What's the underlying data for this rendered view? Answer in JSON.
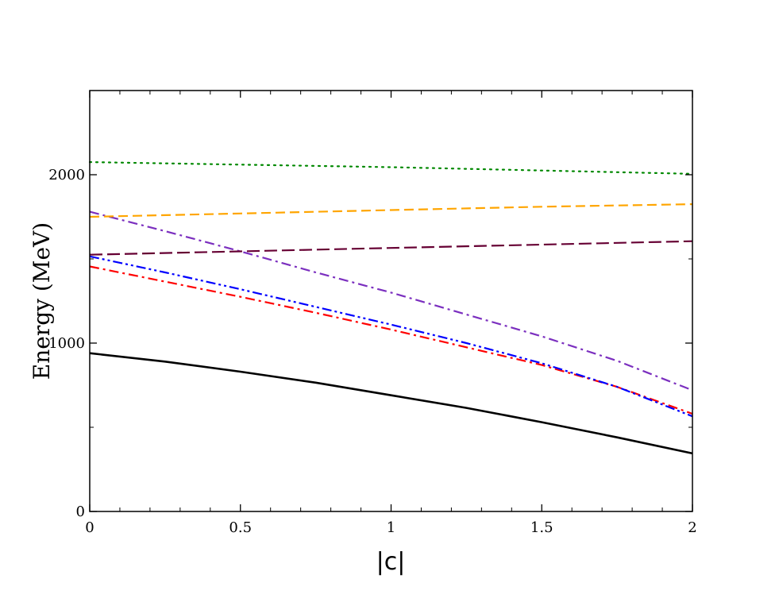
{
  "chart_data": {
    "type": "line",
    "title": "",
    "xlabel": "|c|",
    "ylabel": "Energy (MeV)",
    "xlim": [
      0,
      2
    ],
    "ylim": [
      0,
      2500
    ],
    "x_ticks": [
      0,
      0.5,
      1,
      1.5,
      2
    ],
    "x_tick_labels": [
      "0",
      "0.5",
      "1",
      "1.5",
      "2"
    ],
    "y_ticks": [
      0,
      1000,
      2000
    ],
    "y_tick_labels": [
      "0",
      "1000",
      "2000"
    ],
    "grid": false,
    "legend": "none",
    "series": [
      {
        "color": "#000000",
        "style": "solid",
        "x": [
          0,
          0.25,
          0.5,
          0.75,
          1,
          1.25,
          1.5,
          1.75,
          2
        ],
        "y": [
          940,
          890,
          830,
          765,
          690,
          615,
          530,
          440,
          345
        ]
      },
      {
        "color": "#ff0000",
        "style": "dash-dot",
        "x": [
          0,
          0.25,
          0.5,
          0.75,
          1,
          1.25,
          1.5,
          1.75,
          2
        ],
        "y": [
          1455,
          1365,
          1275,
          1180,
          1080,
          975,
          870,
          740,
          580
        ]
      },
      {
        "color": "#0000ff",
        "style": "dash-dot-dot",
        "x": [
          0,
          0.25,
          0.5,
          0.75,
          1,
          1.25,
          1.5,
          1.75,
          2
        ],
        "y": [
          1515,
          1420,
          1320,
          1215,
          1110,
          1000,
          880,
          740,
          565
        ]
      },
      {
        "color": "#7b2fbf",
        "style": "dash-dot",
        "x": [
          0,
          0.25,
          0.5,
          0.75,
          1,
          1.25,
          1.5,
          1.75,
          2
        ],
        "y": [
          1780,
          1665,
          1545,
          1420,
          1300,
          1170,
          1040,
          895,
          720
        ]
      },
      {
        "color": "#660033",
        "style": "long-dash",
        "x": [
          0,
          0.5,
          1,
          1.5,
          2
        ],
        "y": [
          1525,
          1545,
          1565,
          1585,
          1605
        ]
      },
      {
        "color": "#ffa500",
        "style": "dash",
        "x": [
          0,
          0.5,
          1,
          1.5,
          2
        ],
        "y": [
          1750,
          1770,
          1790,
          1810,
          1825
        ]
      },
      {
        "color": "#008800",
        "style": "dotted",
        "x": [
          0,
          0.5,
          1,
          1.5,
          2
        ],
        "y": [
          2075,
          2060,
          2045,
          2025,
          2005
        ]
      }
    ]
  }
}
